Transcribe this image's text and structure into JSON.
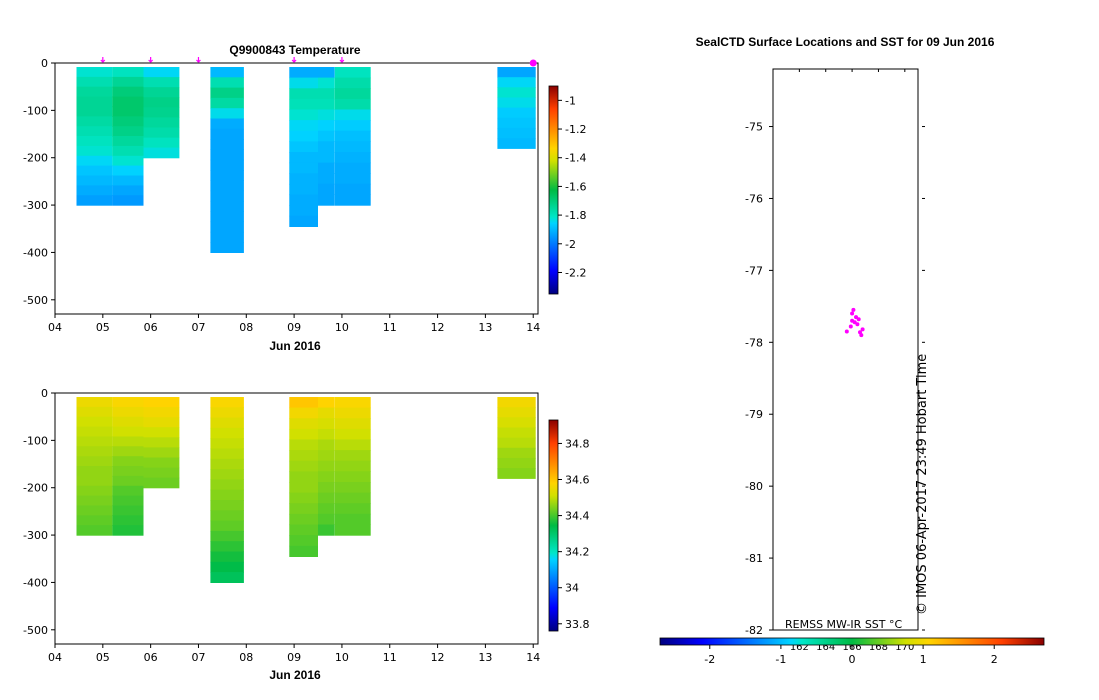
{
  "chart_data": [
    {
      "type": "heatmap",
      "title": "Q9900843  Temperature",
      "xlabel": "Jun 2016",
      "x_ticks": [
        "04",
        "05",
        "06",
        "07",
        "08",
        "09",
        "10",
        "11",
        "12",
        "13",
        "14"
      ],
      "xlim": [
        4,
        14.1
      ],
      "ylim": [
        0,
        -530
      ],
      "y_ticks": [
        0,
        -100,
        -200,
        -300,
        -400,
        -500
      ],
      "colorbar": {
        "min": -2.35,
        "max": -0.9,
        "ticks": [
          "-1",
          "-1.2",
          "-1.4",
          "-1.6",
          "-1.8",
          "-2",
          "-2.2"
        ],
        "tick_values": [
          -1,
          -1.2,
          -1.4,
          -1.6,
          -1.8,
          -2,
          -2.2
        ]
      },
      "profile_markers": [
        5,
        6,
        7,
        9,
        10,
        14
      ],
      "series": [
        {
          "x0": 4.45,
          "x1": 5.2,
          "depth": -300,
          "values": [
            -1.82,
            -1.78,
            -1.75,
            -1.74,
            -1.74,
            -1.76,
            -1.78,
            -1.8,
            -1.82,
            -1.85,
            -1.88,
            -1.9,
            -1.92,
            -1.94
          ]
        },
        {
          "x0": 5.2,
          "x1": 5.85,
          "depth": -300,
          "values": [
            -1.8,
            -1.74,
            -1.7,
            -1.68,
            -1.68,
            -1.7,
            -1.72,
            -1.75,
            -1.78,
            -1.82,
            -1.86,
            -1.9,
            -1.93,
            -1.95
          ]
        },
        {
          "x0": 5.85,
          "x1": 6.6,
          "depth": -200,
          "values": [
            -1.85,
            -1.78,
            -1.74,
            -1.72,
            -1.73,
            -1.75,
            -1.77,
            -1.8,
            -1.83
          ]
        },
        {
          "x0": 7.25,
          "x1": 7.95,
          "depth": -400,
          "values": [
            -1.9,
            -1.78,
            -1.72,
            -1.76,
            -1.84,
            -1.92,
            -1.93,
            -1.93,
            -1.93,
            -1.93,
            -1.93,
            -1.93,
            -1.93,
            -1.93,
            -1.93,
            -1.93,
            -1.93,
            -1.93
          ]
        },
        {
          "x0": 8.9,
          "x1": 9.5,
          "depth": -345,
          "values": [
            -1.92,
            -1.84,
            -1.78,
            -1.79,
            -1.82,
            -1.85,
            -1.86,
            -1.88,
            -1.9,
            -1.9,
            -1.91,
            -1.91,
            -1.92,
            -1.92,
            -1.93
          ]
        },
        {
          "x0": 9.5,
          "x1": 9.85,
          "depth": -300,
          "values": [
            -1.92,
            -1.82,
            -1.78,
            -1.79,
            -1.83,
            -1.86,
            -1.88,
            -1.9,
            -1.9,
            -1.92,
            -1.92,
            -1.93,
            -1.93
          ]
        },
        {
          "x0": 9.85,
          "x1": 10.6,
          "depth": -300,
          "values": [
            -1.8,
            -1.77,
            -1.75,
            -1.77,
            -1.84,
            -1.87,
            -1.89,
            -1.9,
            -1.91,
            -1.92,
            -1.92,
            -1.93,
            -1.93
          ]
        },
        {
          "x0": 13.25,
          "x1": 14.05,
          "depth": -180,
          "values": [
            -1.93,
            -1.85,
            -1.82,
            -1.84,
            -1.87,
            -1.88,
            -1.89,
            -1.9
          ]
        }
      ]
    },
    {
      "type": "heatmap",
      "title": "",
      "xlabel": "Jun 2016",
      "x_ticks": [
        "04",
        "05",
        "06",
        "07",
        "08",
        "09",
        "10",
        "11",
        "12",
        "13",
        "14"
      ],
      "xlim": [
        4,
        14.1
      ],
      "ylim": [
        0,
        -530
      ],
      "y_ticks": [
        0,
        -100,
        -200,
        -300,
        -400,
        -500
      ],
      "colorbar": {
        "min": 33.76,
        "max": 34.93,
        "ticks": [
          "34.8",
          "34.6",
          "34.4",
          "34.2",
          "34",
          "33.8"
        ],
        "tick_values": [
          34.8,
          34.6,
          34.4,
          34.2,
          34,
          33.8
        ]
      },
      "series": [
        {
          "x0": 4.45,
          "x1": 5.2,
          "depth": -300,
          "values": [
            34.55,
            34.53,
            34.51,
            34.5,
            34.49,
            34.48,
            34.47,
            34.46,
            34.46,
            34.45,
            34.44,
            34.43,
            34.42,
            34.41
          ]
        },
        {
          "x0": 5.2,
          "x1": 5.85,
          "depth": -300,
          "values": [
            34.57,
            34.55,
            34.53,
            34.51,
            34.49,
            34.47,
            34.45,
            34.44,
            34.43,
            34.41,
            34.4,
            34.39,
            34.38,
            34.37
          ]
        },
        {
          "x0": 5.85,
          "x1": 6.6,
          "depth": -200,
          "values": [
            34.58,
            34.56,
            34.54,
            34.51,
            34.49,
            34.47,
            34.45,
            34.44,
            34.43
          ]
        },
        {
          "x0": 7.25,
          "x1": 7.95,
          "depth": -400,
          "values": [
            34.57,
            34.55,
            34.53,
            34.51,
            34.5,
            34.49,
            34.48,
            34.47,
            34.46,
            34.45,
            34.44,
            34.43,
            34.42,
            34.4,
            34.38,
            34.36,
            34.34,
            34.32
          ]
        },
        {
          "x0": 8.9,
          "x1": 9.5,
          "depth": -345,
          "values": [
            34.6,
            34.56,
            34.53,
            34.51,
            34.49,
            34.48,
            34.47,
            34.46,
            34.46,
            34.45,
            34.44,
            34.43,
            34.42,
            34.41,
            34.4
          ]
        },
        {
          "x0": 9.5,
          "x1": 9.85,
          "depth": -300,
          "values": [
            34.58,
            34.54,
            34.52,
            34.5,
            34.48,
            34.47,
            34.46,
            34.45,
            34.44,
            34.43,
            34.42,
            34.41,
            34.39
          ]
        },
        {
          "x0": 9.85,
          "x1": 10.6,
          "depth": -300,
          "values": [
            34.57,
            34.55,
            34.53,
            34.51,
            34.49,
            34.47,
            34.46,
            34.45,
            34.44,
            34.43,
            34.42,
            34.41,
            34.41
          ]
        },
        {
          "x0": 13.25,
          "x1": 14.05,
          "depth": -180,
          "values": [
            34.56,
            34.54,
            34.52,
            34.5,
            34.49,
            34.47,
            34.46,
            34.45
          ]
        }
      ]
    },
    {
      "type": "scatter",
      "title": "SealCTD Surface Locations and SST for 09 Jun 2016",
      "ylim": [
        -74.2,
        -82.0
      ],
      "y_ticks": [
        "-75",
        "-76",
        "-77",
        "-78",
        "-79",
        "-80",
        "-81",
        "-82"
      ],
      "y_tick_values": [
        -75,
        -76,
        -77,
        -78,
        -79,
        -80,
        -81,
        -82
      ],
      "x_ticks": [
        "162",
        "164",
        "166",
        "168",
        "170"
      ],
      "x_tick_values": [
        162,
        164,
        166,
        168,
        170
      ],
      "xlim": [
        160.0,
        171.0
      ],
      "points": [
        {
          "lon": 166.2,
          "lat": -77.72
        },
        {
          "lon": 166.0,
          "lat": -77.6
        },
        {
          "lon": 166.5,
          "lat": -77.68
        },
        {
          "lon": 165.6,
          "lat": -77.85
        },
        {
          "lon": 166.7,
          "lat": -77.9
        },
        {
          "lon": 166.1,
          "lat": -77.55
        },
        {
          "lon": 166.4,
          "lat": -77.75
        },
        {
          "lon": 166.8,
          "lat": -77.82
        },
        {
          "lon": 165.9,
          "lat": -77.78
        },
        {
          "lon": 166.3,
          "lat": -77.65
        },
        {
          "lon": 166.6,
          "lat": -77.86
        },
        {
          "lon": 166.0,
          "lat": -77.7
        }
      ],
      "source_label": "REMSS MW-IR SST °C",
      "credit": "© IMOS 06-Apr-2017 23:49 Hobart Time",
      "colorbar": {
        "min": -2.7,
        "max": 2.7,
        "ticks": [
          "-2",
          "-1",
          "0",
          "1",
          "2"
        ],
        "tick_values": [
          -2,
          -1,
          0,
          1,
          2
        ]
      }
    }
  ]
}
